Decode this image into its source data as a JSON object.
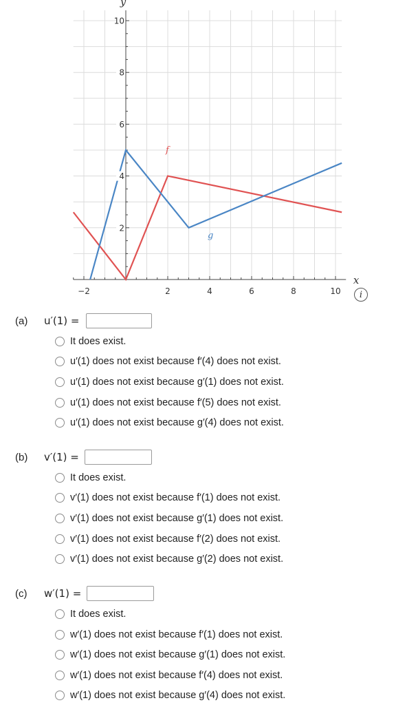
{
  "graph": {
    "x_axis_label": "x",
    "y_axis_label": "y",
    "x_tick_labels": [
      "-2",
      "2",
      "4",
      "6",
      "8",
      "10"
    ],
    "y_tick_labels": [
      "2",
      "4",
      "6",
      "8",
      "10"
    ],
    "curves": [
      {
        "name": "f",
        "color": "#e05252",
        "points": [
          [
            -2.5,
            2.6
          ],
          [
            0,
            0
          ],
          [
            2,
            4
          ],
          [
            10.3,
            2.6
          ]
        ]
      },
      {
        "name": "g",
        "color": "#4a86c5",
        "points": [
          [
            -1.7,
            0
          ],
          [
            0,
            5
          ],
          [
            3,
            2
          ],
          [
            10.3,
            4.5
          ]
        ]
      }
    ],
    "info_icon": "i"
  },
  "parts": [
    {
      "label": "(a)",
      "expr": "u′(1) =",
      "input_value": "",
      "options": [
        "It does exist.",
        "u′(1) does not exist because f′(4) does not exist.",
        "u′(1) does not exist because g′(1) does not exist.",
        "u′(1) does not exist because f′(5) does not exist.",
        "u′(1) does not exist because g′(4) does not exist."
      ]
    },
    {
      "label": "(b)",
      "expr": "v′(1) =",
      "input_value": "",
      "options": [
        "It does exist.",
        "v′(1) does not exist because f′(1) does not exist.",
        "v′(1) does not exist because g′(1) does not exist.",
        "v′(1) does not exist because f′(2) does not exist.",
        "v′(1) does not exist because g′(2) does not exist."
      ]
    },
    {
      "label": "(c)",
      "expr": "w′(1) =",
      "input_value": "",
      "options": [
        "It does exist.",
        "w′(1) does not exist because f′(1) does not exist.",
        "w′(1) does not exist because g′(1) does not exist.",
        "w′(1) does not exist because f′(4) does not exist.",
        "w′(1) does not exist because g′(4) does not exist."
      ]
    }
  ]
}
